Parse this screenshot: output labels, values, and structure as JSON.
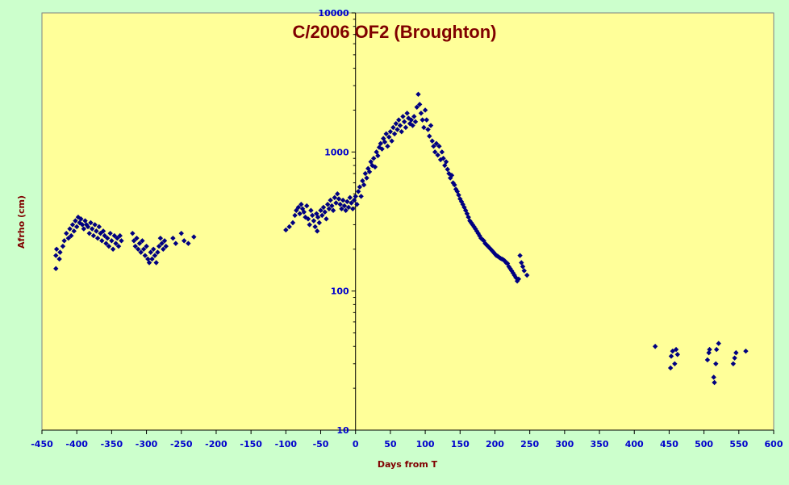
{
  "chart_data": {
    "type": "scatter",
    "title": "C/2006 OF2 (Broughton)",
    "xlabel": "Days from T",
    "ylabel": "Afrho (cm)",
    "xlim": [
      -450,
      600
    ],
    "ylim": [
      10,
      10000
    ],
    "yscale": "log",
    "x_ticks": [
      "-450",
      "-400",
      "-350",
      "-300",
      "-250",
      "-200",
      "-150",
      "-100",
      "-50",
      "0",
      "50",
      "100",
      "150",
      "200",
      "250",
      "300",
      "350",
      "400",
      "450",
      "500",
      "550",
      "600"
    ],
    "y_ticks": [
      "10",
      "100",
      "1000",
      "10000"
    ],
    "colors": {
      "plot_bg": "#ffff99",
      "outer_bg": "#ccffcc",
      "marker": "#000080",
      "title": "#800000",
      "ticks": "#0000cc"
    },
    "series": [
      {
        "marker": "diamond",
        "points": [
          [
            -430,
            145
          ],
          [
            -430,
            180
          ],
          [
            -429,
            200
          ],
          [
            -425,
            170
          ],
          [
            -424,
            190
          ],
          [
            -420,
            210
          ],
          [
            -418,
            230
          ],
          [
            -415,
            260
          ],
          [
            -412,
            240
          ],
          [
            -410,
            280
          ],
          [
            -408,
            250
          ],
          [
            -406,
            300
          ],
          [
            -404,
            270
          ],
          [
            -402,
            320
          ],
          [
            -400,
            290
          ],
          [
            -398,
            340
          ],
          [
            -396,
            310
          ],
          [
            -394,
            330
          ],
          [
            -392,
            300
          ],
          [
            -390,
            280
          ],
          [
            -388,
            320
          ],
          [
            -386,
            300
          ],
          [
            -384,
            290
          ],
          [
            -382,
            260
          ],
          [
            -380,
            310
          ],
          [
            -378,
            280
          ],
          [
            -376,
            250
          ],
          [
            -374,
            300
          ],
          [
            -372,
            270
          ],
          [
            -370,
            240
          ],
          [
            -368,
            290
          ],
          [
            -366,
            260
          ],
          [
            -364,
            230
          ],
          [
            -362,
            270
          ],
          [
            -360,
            250
          ],
          [
            -358,
            220
          ],
          [
            -356,
            240
          ],
          [
            -354,
            210
          ],
          [
            -352,
            260
          ],
          [
            -350,
            230
          ],
          [
            -348,
            200
          ],
          [
            -346,
            250
          ],
          [
            -344,
            220
          ],
          [
            -342,
            240
          ],
          [
            -340,
            210
          ],
          [
            -338,
            250
          ],
          [
            -336,
            230
          ],
          [
            -320,
            260
          ],
          [
            -318,
            230
          ],
          [
            -316,
            210
          ],
          [
            -314,
            240
          ],
          [
            -312,
            200
          ],
          [
            -310,
            220
          ],
          [
            -308,
            190
          ],
          [
            -306,
            230
          ],
          [
            -304,
            200
          ],
          [
            -302,
            180
          ],
          [
            -300,
            210
          ],
          [
            -298,
            170
          ],
          [
            -296,
            160
          ],
          [
            -294,
            190
          ],
          [
            -292,
            170
          ],
          [
            -290,
            200
          ],
          [
            -288,
            180
          ],
          [
            -286,
            160
          ],
          [
            -284,
            190
          ],
          [
            -282,
            210
          ],
          [
            -280,
            240
          ],
          [
            -278,
            220
          ],
          [
            -276,
            200
          ],
          [
            -274,
            230
          ],
          [
            -272,
            210
          ],
          [
            -262,
            240
          ],
          [
            -258,
            220
          ],
          [
            -250,
            260
          ],
          [
            -246,
            230
          ],
          [
            -240,
            220
          ],
          [
            -232,
            245
          ],
          [
            -100,
            275
          ],
          [
            -95,
            290
          ],
          [
            -90,
            310
          ],
          [
            -87,
            350
          ],
          [
            -85,
            380
          ],
          [
            -82,
            400
          ],
          [
            -80,
            360
          ],
          [
            -78,
            420
          ],
          [
            -76,
            390
          ],
          [
            -74,
            370
          ],
          [
            -72,
            340
          ],
          [
            -70,
            410
          ],
          [
            -68,
            330
          ],
          [
            -66,
            300
          ],
          [
            -64,
            380
          ],
          [
            -62,
            350
          ],
          [
            -60,
            320
          ],
          [
            -58,
            290
          ],
          [
            -56,
            360
          ],
          [
            -55,
            270
          ],
          [
            -54,
            340
          ],
          [
            -52,
            310
          ],
          [
            -50,
            380
          ],
          [
            -48,
            350
          ],
          [
            -46,
            400
          ],
          [
            -44,
            370
          ],
          [
            -42,
            330
          ],
          [
            -40,
            420
          ],
          [
            -38,
            390
          ],
          [
            -36,
            450
          ],
          [
            -34,
            410
          ],
          [
            -32,
            380
          ],
          [
            -30,
            470
          ],
          [
            -28,
            430
          ],
          [
            -26,
            500
          ],
          [
            -24,
            460
          ],
          [
            -22,
            420
          ],
          [
            -20,
            390
          ],
          [
            -18,
            450
          ],
          [
            -16,
            410
          ],
          [
            -14,
            380
          ],
          [
            -12,
            440
          ],
          [
            -10,
            400
          ],
          [
            -8,
            470
          ],
          [
            -6,
            430
          ],
          [
            -4,
            390
          ],
          [
            -2,
            450
          ],
          [
            0,
            480
          ],
          [
            2,
            420
          ],
          [
            4,
            520
          ],
          [
            6,
            560
          ],
          [
            8,
            480
          ],
          [
            10,
            620
          ],
          [
            12,
            580
          ],
          [
            14,
            700
          ],
          [
            16,
            650
          ],
          [
            18,
            760
          ],
          [
            20,
            720
          ],
          [
            22,
            850
          ],
          [
            24,
            800
          ],
          [
            26,
            900
          ],
          [
            28,
            780
          ],
          [
            30,
            1000
          ],
          [
            32,
            940
          ],
          [
            34,
            1080
          ],
          [
            36,
            1150
          ],
          [
            38,
            1050
          ],
          [
            40,
            1250
          ],
          [
            42,
            1180
          ],
          [
            44,
            1350
          ],
          [
            46,
            1100
          ],
          [
            48,
            1280
          ],
          [
            50,
            1400
          ],
          [
            52,
            1200
          ],
          [
            54,
            1500
          ],
          [
            56,
            1350
          ],
          [
            58,
            1600
          ],
          [
            60,
            1450
          ],
          [
            62,
            1700
          ],
          [
            64,
            1550
          ],
          [
            66,
            1400
          ],
          [
            68,
            1800
          ],
          [
            70,
            1650
          ],
          [
            72,
            1500
          ],
          [
            74,
            1900
          ],
          [
            76,
            1750
          ],
          [
            78,
            1600
          ],
          [
            80,
            1700
          ],
          [
            82,
            1550
          ],
          [
            84,
            1800
          ],
          [
            86,
            1650
          ],
          [
            88,
            2100
          ],
          [
            90,
            2600
          ],
          [
            92,
            2200
          ],
          [
            94,
            1900
          ],
          [
            96,
            1700
          ],
          [
            98,
            1500
          ],
          [
            100,
            2000
          ],
          [
            102,
            1700
          ],
          [
            104,
            1450
          ],
          [
            106,
            1300
          ],
          [
            108,
            1550
          ],
          [
            110,
            1200
          ],
          [
            112,
            1100
          ],
          [
            114,
            1000
          ],
          [
            116,
            1150
          ],
          [
            118,
            950
          ],
          [
            120,
            1100
          ],
          [
            122,
            880
          ],
          [
            124,
            1000
          ],
          [
            126,
            900
          ],
          [
            128,
            800
          ],
          [
            130,
            850
          ],
          [
            132,
            750
          ],
          [
            134,
            700
          ],
          [
            136,
            650
          ],
          [
            138,
            680
          ],
          [
            140,
            600
          ],
          [
            142,
            580
          ],
          [
            144,
            540
          ],
          [
            146,
            520
          ],
          [
            148,
            490
          ],
          [
            150,
            460
          ],
          [
            152,
            440
          ],
          [
            154,
            420
          ],
          [
            156,
            400
          ],
          [
            158,
            380
          ],
          [
            160,
            360
          ],
          [
            162,
            340
          ],
          [
            164,
            320
          ],
          [
            166,
            310
          ],
          [
            168,
            300
          ],
          [
            170,
            290
          ],
          [
            172,
            280
          ],
          [
            174,
            270
          ],
          [
            176,
            260
          ],
          [
            178,
            250
          ],
          [
            180,
            240
          ],
          [
            182,
            235
          ],
          [
            184,
            230
          ],
          [
            186,
            220
          ],
          [
            188,
            215
          ],
          [
            190,
            210
          ],
          [
            192,
            205
          ],
          [
            194,
            200
          ],
          [
            196,
            195
          ],
          [
            198,
            190
          ],
          [
            200,
            185
          ],
          [
            202,
            180
          ],
          [
            204,
            178
          ],
          [
            206,
            175
          ],
          [
            208,
            172
          ],
          [
            210,
            170
          ],
          [
            212,
            168
          ],
          [
            214,
            165
          ],
          [
            216,
            160
          ],
          [
            218,
            158
          ],
          [
            220,
            150
          ],
          [
            222,
            145
          ],
          [
            224,
            140
          ],
          [
            226,
            135
          ],
          [
            228,
            130
          ],
          [
            230,
            125
          ],
          [
            232,
            118
          ],
          [
            234,
            122
          ],
          [
            236,
            180
          ],
          [
            238,
            160
          ],
          [
            240,
            150
          ],
          [
            242,
            140
          ],
          [
            246,
            130
          ]
        ]
      },
      {
        "marker": "diamond",
        "points": [
          [
            430,
            40
          ],
          [
            452,
            28
          ],
          [
            453,
            34
          ],
          [
            455,
            37
          ],
          [
            458,
            30
          ],
          [
            460,
            38
          ],
          [
            462,
            35
          ],
          [
            505,
            32
          ],
          [
            507,
            36
          ],
          [
            508,
            38
          ],
          [
            514,
            24
          ],
          [
            515,
            22
          ],
          [
            517,
            30
          ],
          [
            518,
            38
          ],
          [
            521,
            42
          ],
          [
            542,
            30
          ],
          [
            544,
            33
          ],
          [
            546,
            36
          ],
          [
            560,
            37
          ]
        ]
      }
    ]
  }
}
